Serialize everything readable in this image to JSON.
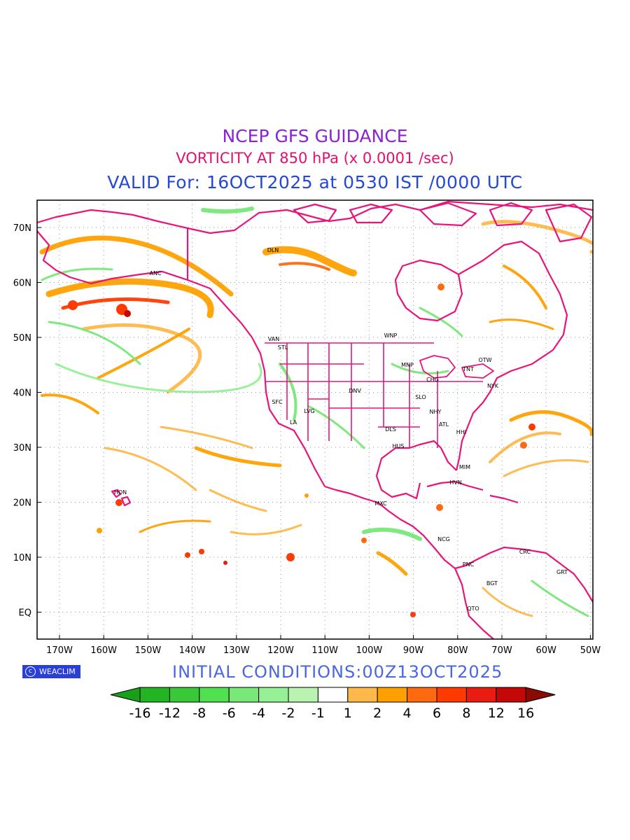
{
  "header": {
    "title": "NCEP GFS GUIDANCE",
    "subtitle": "VORTICITY AT 850 hPa (x 0.0001 /sec)",
    "valid": "VALID For: 16OCT2025 at 0530 IST /0000 UTC"
  },
  "footer": {
    "initial_conditions": "INITIAL CONDITIONS:00Z13OCT2025",
    "brand": "WEACLIM"
  },
  "map": {
    "lat_labels": [
      "70N",
      "60N",
      "50N",
      "40N",
      "30N",
      "20N",
      "10N",
      "EQ"
    ],
    "lon_labels": [
      "170W",
      "160W",
      "150W",
      "140W",
      "130W",
      "120W",
      "110W",
      "100W",
      "90W",
      "80W",
      "70W",
      "60W",
      "50W"
    ],
    "stations": [
      "DLN",
      "ANC",
      "VAN",
      "STL",
      "WNP",
      "MNP",
      "TNT",
      "OTW",
      "CHG",
      "NYK",
      "DNV",
      "SLO",
      "SFC",
      "LVG",
      "LA",
      "NHY",
      "ATL",
      "DLS",
      "HHI",
      "HUS",
      "MIM",
      "HVN",
      "HON",
      "MXC",
      "NCG",
      "CRC",
      "PNC",
      "GRT",
      "BGT",
      "QTO"
    ],
    "colors": {
      "frame": "#000000",
      "coast": "#e8147a",
      "grid": "#9a9a9a"
    }
  },
  "legend": {
    "labels": [
      "-16",
      "-12",
      "-8",
      "-6",
      "-4",
      "-2",
      "-1",
      "1",
      "2",
      "4",
      "6",
      "8",
      "12",
      "16"
    ],
    "colors": [
      "#18a018",
      "#22b422",
      "#38c838",
      "#50e050",
      "#78e878",
      "#96f096",
      "#b8f4b0",
      "#ffffff",
      "#ffb84a",
      "#ffa000",
      "#ff6a10",
      "#ff3a00",
      "#e81c10",
      "#c40808",
      "#8a0a04"
    ]
  }
}
